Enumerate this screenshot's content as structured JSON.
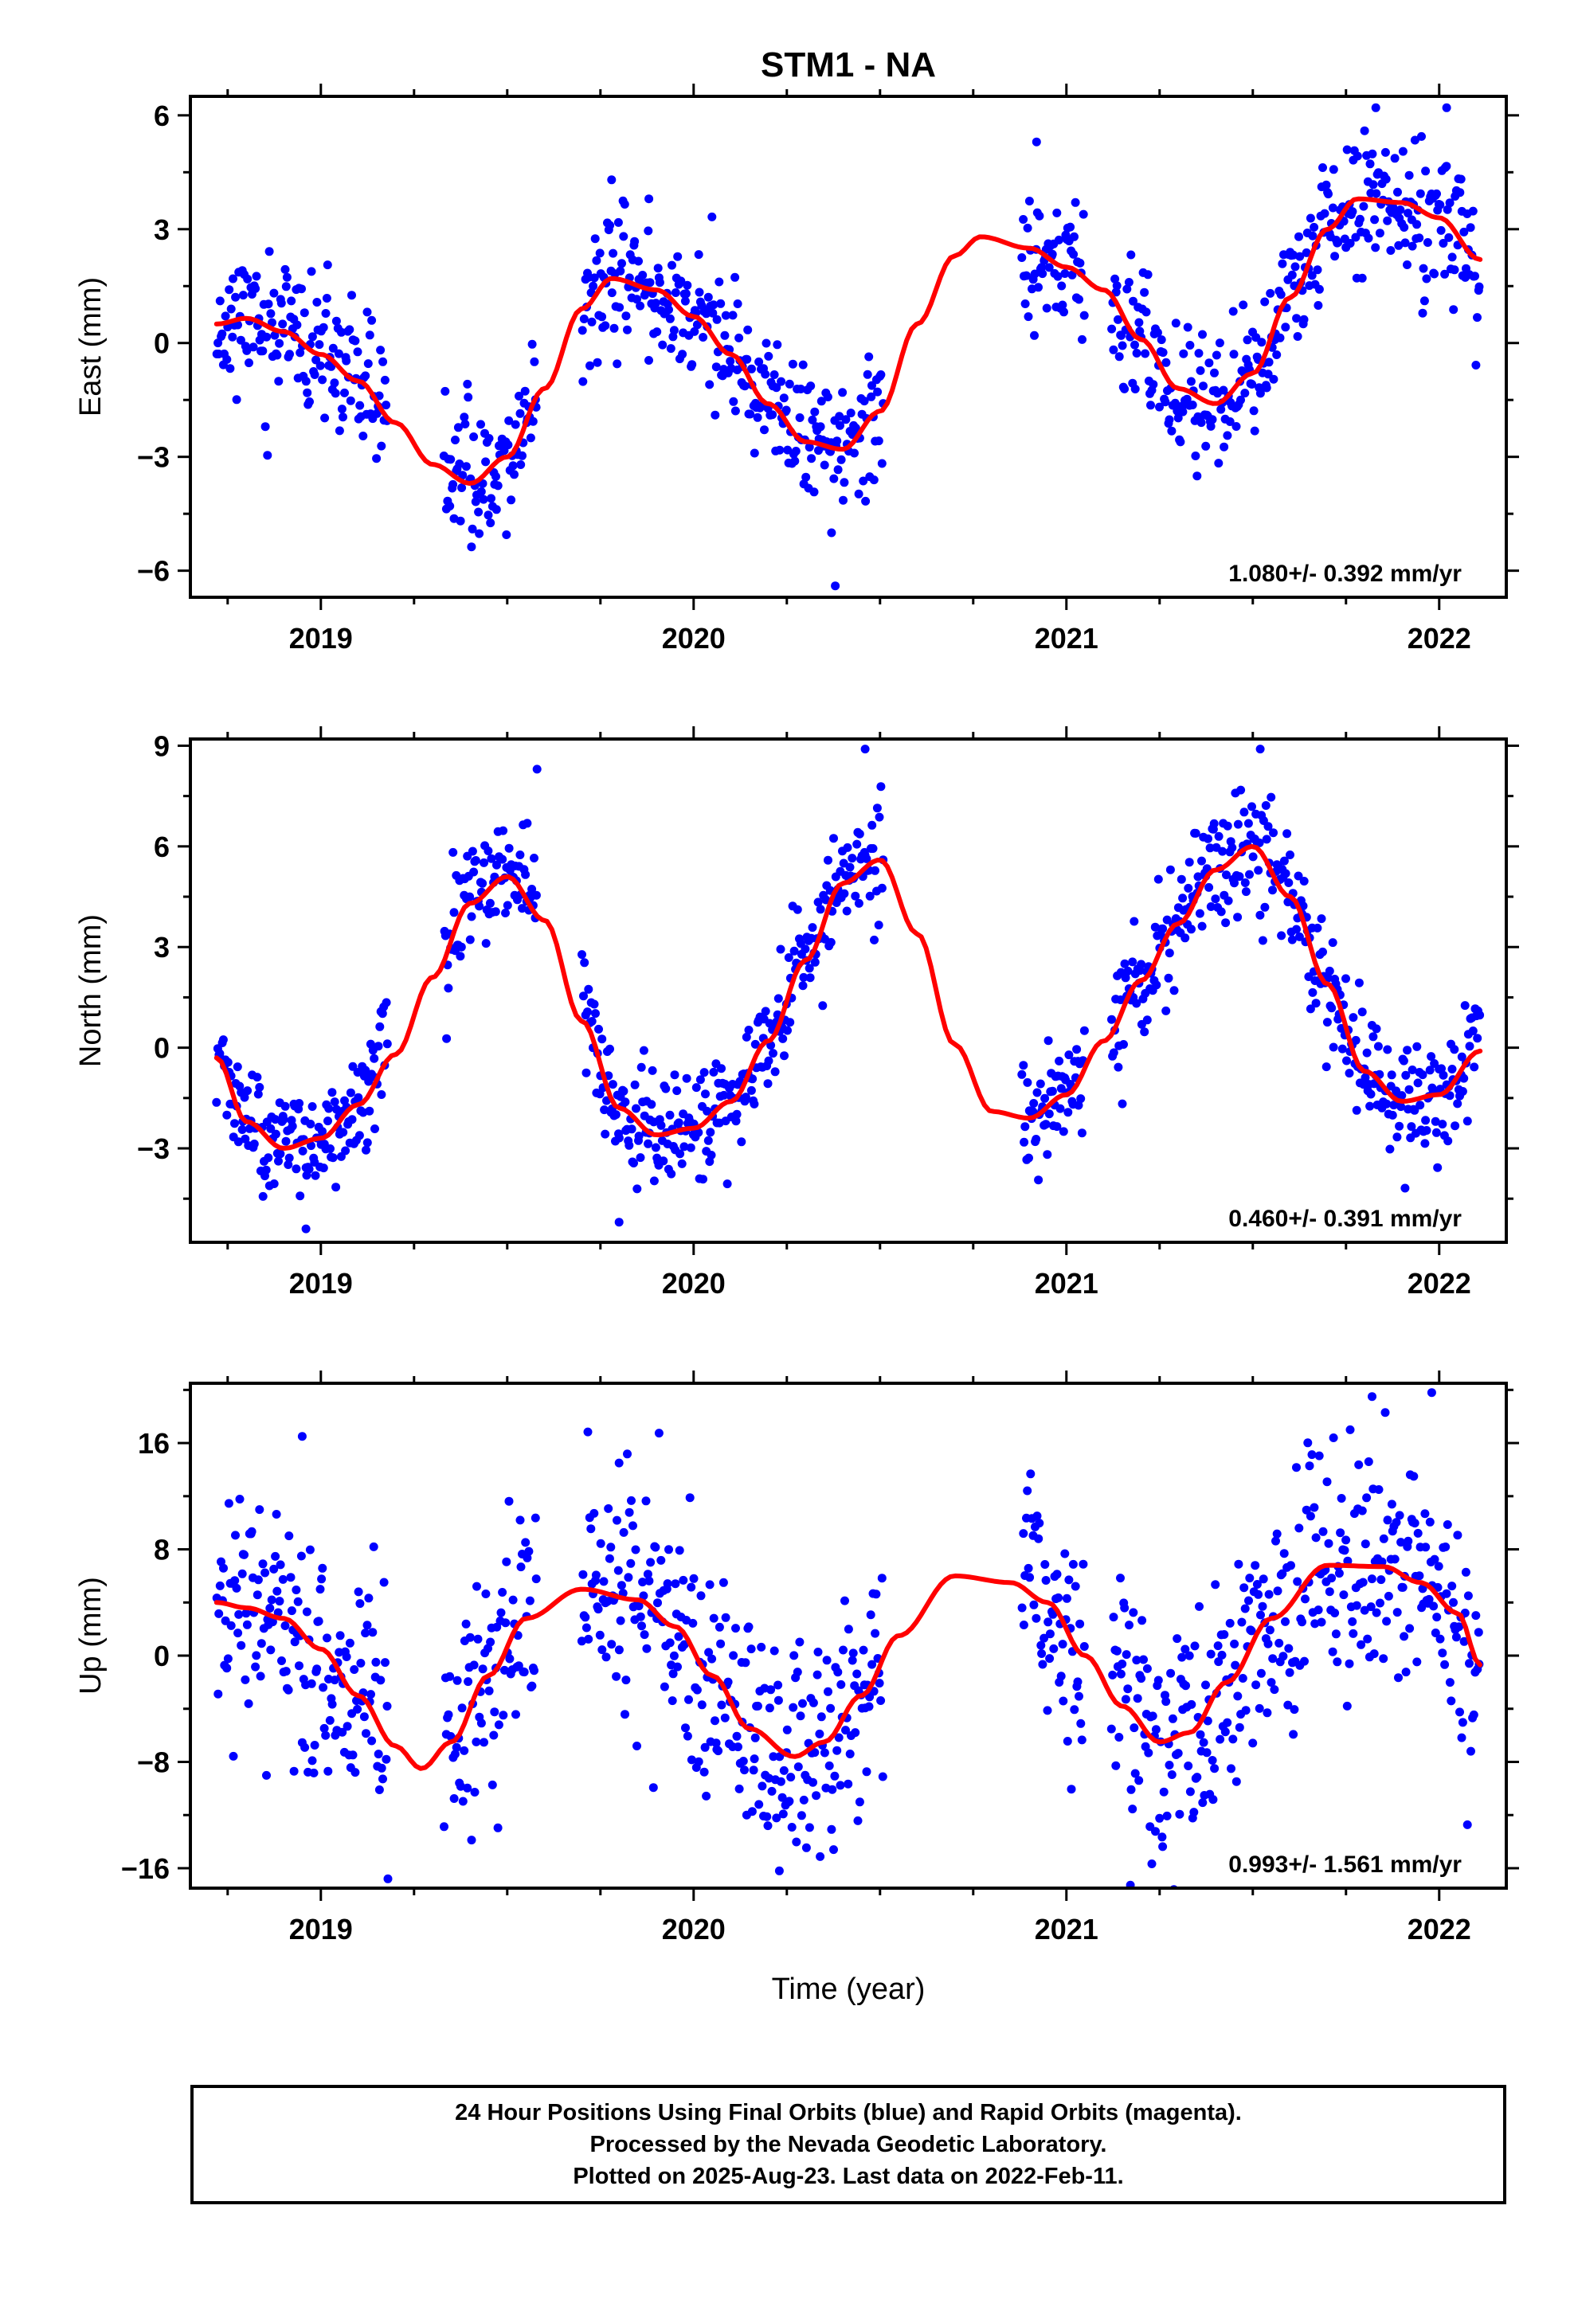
{
  "title": "STM1 - NA",
  "xlabel": "Time (year)",
  "colors": {
    "final_orbits": "#0000ff",
    "fit_curve": "#ff0000",
    "frame": "#000000"
  },
  "footer": {
    "line1": "24 Hour Positions Using Final Orbits (blue) and Rapid Orbits (magenta).",
    "line2": "Processed by the Nevada Geodetic Laboratory.",
    "line3": "Plotted on 2025-Aug-23. Last data on 2022-Feb-11."
  },
  "chart_data": [
    {
      "type": "scatter",
      "name": "east",
      "ylabel": "East (mm)",
      "rate_label": "1.080+/- 0.392 mm/yr",
      "xlim": [
        2018.65,
        2022.18
      ],
      "ylim": [
        -6.7,
        6.5
      ],
      "yticks": [
        -6,
        -3,
        0,
        3,
        6
      ],
      "xticks": [
        2019,
        2020,
        2021,
        2022
      ],
      "segments": [
        [
          2018.72,
          2019.18
        ],
        [
          2019.33,
          2019.58
        ],
        [
          2019.7,
          2020.51
        ],
        [
          2020.88,
          2021.05
        ],
        [
          2021.12,
          2022.11
        ]
      ],
      "fit": {
        "x": [
          2018.72,
          2018.8,
          2018.9,
          2019.0,
          2019.1,
          2019.2,
          2019.3,
          2019.4,
          2019.5,
          2019.6,
          2019.7,
          2019.78,
          2019.9,
          2020.0,
          2020.1,
          2020.2,
          2020.3,
          2020.4,
          2020.5,
          2020.6,
          2020.7,
          2020.77,
          2020.9,
          2021.0,
          2021.1,
          2021.2,
          2021.3,
          2021.4,
          2021.5,
          2021.6,
          2021.7,
          2021.78,
          2021.9,
          2022.0,
          2022.11
        ],
        "y": [
          0.5,
          0.65,
          0.3,
          -0.3,
          -1.0,
          -2.1,
          -3.2,
          -3.7,
          -3.0,
          -1.2,
          0.9,
          1.7,
          1.4,
          0.7,
          -0.3,
          -1.6,
          -2.6,
          -2.8,
          -1.8,
          0.5,
          2.3,
          2.8,
          2.5,
          2.0,
          1.4,
          0.1,
          -1.2,
          -1.6,
          -0.8,
          1.2,
          3.0,
          3.8,
          3.7,
          3.3,
          2.2
        ]
      },
      "noise": 0.9,
      "seed": 11,
      "points_per_year": 340,
      "outliers": [
        [
          2019.78,
          4.3
        ],
        [
          2019.88,
          3.8
        ],
        [
          2020.38,
          -6.4
        ],
        [
          2020.37,
          -5.0
        ],
        [
          2020.92,
          5.3
        ],
        [
          2021.83,
          6.2
        ],
        [
          2022.02,
          6.2
        ]
      ]
    },
    {
      "type": "scatter",
      "name": "north",
      "ylabel": "North (mm)",
      "rate_label": "0.460+/- 0.391 mm/yr",
      "xlim": [
        2018.65,
        2022.18
      ],
      "ylim": [
        -5.8,
        9.2
      ],
      "yticks": [
        -3,
        0,
        3,
        6,
        9
      ],
      "xticks": [
        2019,
        2020,
        2021,
        2022
      ],
      "segments": [
        [
          2018.72,
          2019.18
        ],
        [
          2019.33,
          2019.58
        ],
        [
          2019.7,
          2020.51
        ],
        [
          2020.88,
          2021.05
        ],
        [
          2021.12,
          2022.11
        ]
      ],
      "fit": {
        "x": [
          2018.72,
          2018.8,
          2018.9,
          2019.0,
          2019.1,
          2019.2,
          2019.3,
          2019.4,
          2019.5,
          2019.6,
          2019.7,
          2019.8,
          2019.9,
          2020.0,
          2020.1,
          2020.2,
          2020.3,
          2020.4,
          2020.5,
          2020.6,
          2020.7,
          2020.8,
          2020.9,
          2021.0,
          2021.1,
          2021.2,
          2021.3,
          2021.4,
          2021.5,
          2021.6,
          2021.7,
          2021.8,
          2021.9,
          2022.0,
          2022.11
        ],
        "y": [
          -0.3,
          -2.2,
          -3.0,
          -2.7,
          -1.7,
          -0.2,
          2.1,
          4.3,
          5.1,
          3.8,
          0.8,
          -1.8,
          -2.6,
          -2.4,
          -1.6,
          0.2,
          2.6,
          4.9,
          5.6,
          3.4,
          0.1,
          -1.9,
          -2.1,
          -1.4,
          0.2,
          2.0,
          3.7,
          5.3,
          6.0,
          4.5,
          1.9,
          -0.7,
          -1.6,
          -1.4,
          -0.1
        ]
      },
      "noise": 0.85,
      "seed": 23,
      "points_per_year": 340,
      "outliers": [
        [
          2019.58,
          8.3
        ],
        [
          2020.46,
          8.9
        ],
        [
          2021.52,
          8.9
        ],
        [
          2018.96,
          -5.4
        ],
        [
          2019.8,
          -5.2
        ]
      ]
    },
    {
      "type": "scatter",
      "name": "up",
      "ylabel": "Up (mm)",
      "rate_label": "0.993+/- 1.561 mm/yr",
      "xlim": [
        2018.65,
        2022.18
      ],
      "ylim": [
        -17.5,
        20.5
      ],
      "yticks": [
        -16,
        -8,
        0,
        8,
        16
      ],
      "xticks": [
        2019,
        2020,
        2021,
        2022
      ],
      "segments": [
        [
          2018.72,
          2019.18
        ],
        [
          2019.33,
          2019.58
        ],
        [
          2019.7,
          2020.51
        ],
        [
          2020.88,
          2021.05
        ],
        [
          2021.12,
          2022.11
        ]
      ],
      "fit": {
        "x": [
          2018.72,
          2018.8,
          2018.9,
          2019.0,
          2019.1,
          2019.2,
          2019.27,
          2019.35,
          2019.45,
          2019.55,
          2019.7,
          2019.85,
          2019.95,
          2020.05,
          2020.15,
          2020.27,
          2020.35,
          2020.45,
          2020.55,
          2020.7,
          2020.85,
          2020.95,
          2021.05,
          2021.15,
          2021.25,
          2021.33,
          2021.43,
          2021.55,
          2021.7,
          2021.85,
          2021.95,
          2022.05,
          2022.11
        ],
        "y": [
          4.0,
          3.6,
          2.8,
          0.5,
          -3.0,
          -6.8,
          -8.5,
          -6.5,
          -1.5,
          2.8,
          5.0,
          4.2,
          2.2,
          -1.5,
          -5.5,
          -7.6,
          -6.5,
          -3.0,
          1.5,
          6.0,
          5.5,
          4.0,
          0.0,
          -3.8,
          -6.5,
          -5.8,
          -2.0,
          2.8,
          6.8,
          6.7,
          5.5,
          3.2,
          -0.7
        ]
      },
      "noise": 4.5,
      "seed": 37,
      "points_per_year": 340,
      "outliers": [
        [
          2018.95,
          16.5
        ],
        [
          2019.18,
          -16.8
        ],
        [
          2021.82,
          19.5
        ],
        [
          2021.98,
          19.8
        ],
        [
          2020.23,
          -16.2
        ],
        [
          2019.8,
          14.5
        ]
      ]
    }
  ]
}
